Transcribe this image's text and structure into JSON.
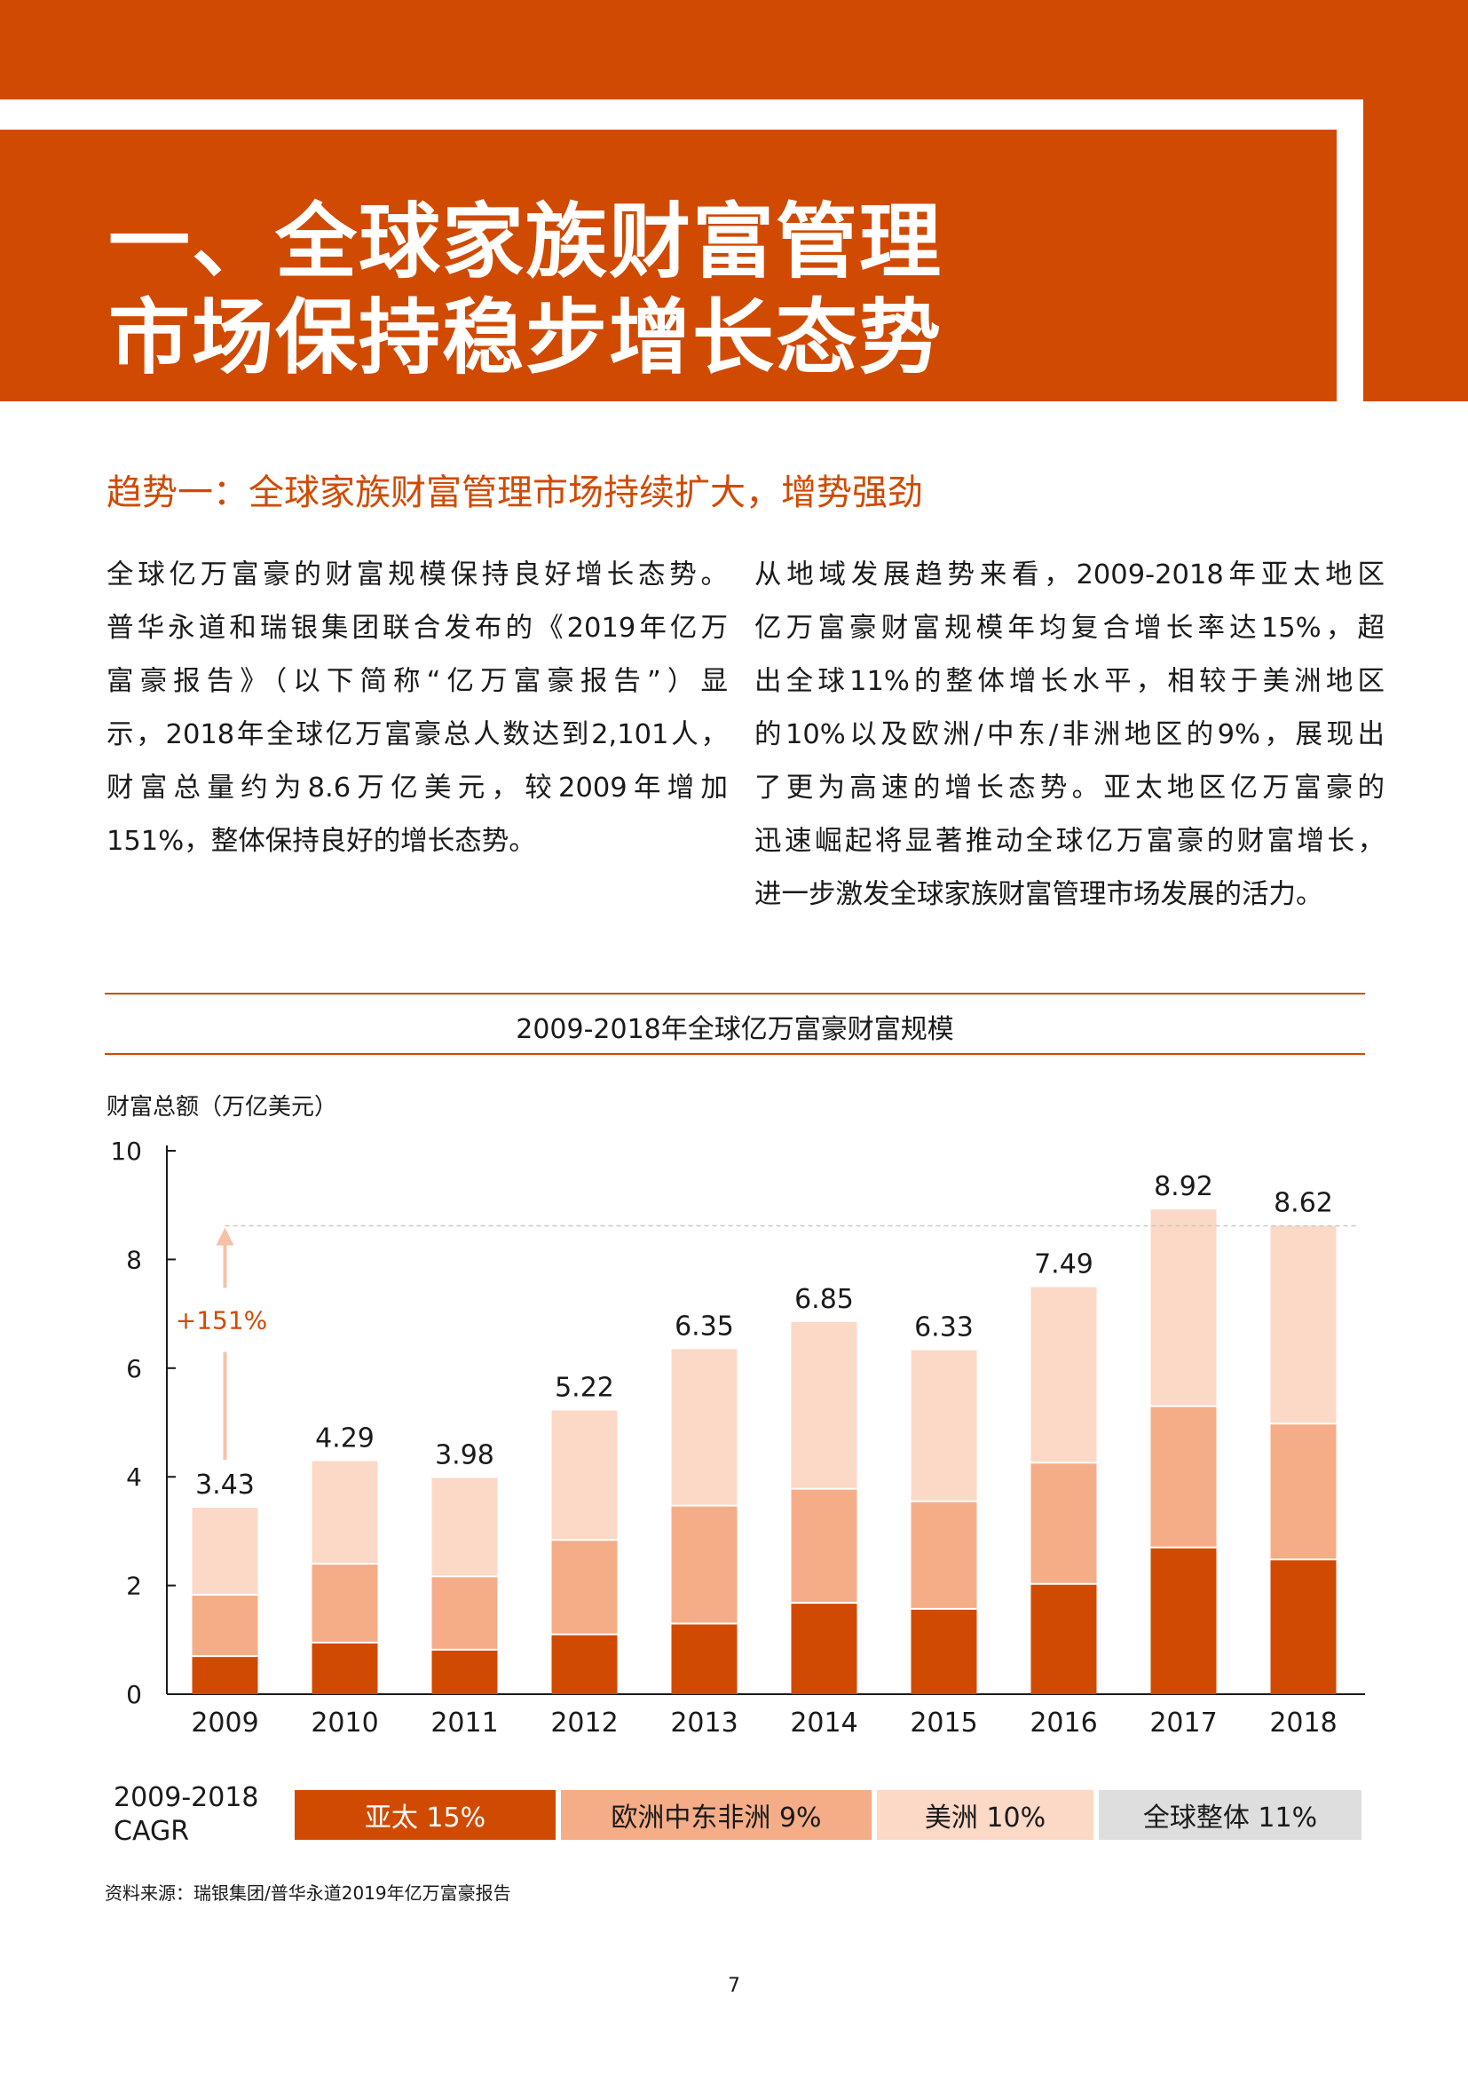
{
  "header": {
    "title_line1": "一、全球家族财富管理",
    "title_line2": "市场保持稳步增长态势"
  },
  "section": {
    "subheading": "趋势一：全球家族财富管理市场持续扩大，增势强劲"
  },
  "body": {
    "left_lines": [
      "全球亿万富豪的财富规模保持良好增长态势。",
      "普华永道和瑞银集团联合发布的《2019年亿万",
      "富豪报告》（以下简称“亿万富豪报告”）显",
      "示，2018年全球亿万富豪总人数达到2,101人，",
      "财富总量约为8.6万亿美元，较2009年增加",
      "151%，整体保持良好的增长态势。"
    ],
    "right_lines": [
      "从地域发展趋势来看，2009-2018年亚太地区",
      "亿万富豪财富规模年均复合增长率达15%，超",
      "出全球11%的整体增长水平，相较于美洲地区",
      "的10%以及欧洲/中东/非洲地区的9%，展现出",
      "了更为高速的增长态势。亚太地区亿万富豪的",
      "迅速崛起将显著推动全球亿万富豪的财富增长，",
      "进一步激发全球家族财富管理市场发展的活力。"
    ]
  },
  "chart_data": {
    "type": "bar",
    "title": "2009-2018年全球亿万富豪财富规模",
    "ylabel": "财富总额（万亿美元）",
    "xlabel": "",
    "ylim": [
      0,
      10
    ],
    "yticks": [
      "0",
      "2",
      "4",
      "6",
      "8",
      "10"
    ],
    "categories": [
      "2009",
      "2010",
      "2011",
      "2012",
      "2013",
      "2014",
      "2015",
      "2016",
      "2017",
      "2018"
    ],
    "totals": [
      3.43,
      4.29,
      3.98,
      5.22,
      6.35,
      6.85,
      6.33,
      7.49,
      8.92,
      8.62
    ],
    "total_labels": [
      "3.43",
      "4.29",
      "3.98",
      "5.22",
      "6.35",
      "6.85",
      "6.33",
      "7.49",
      "8.92",
      "8.62"
    ],
    "series": [
      {
        "name": "亚太",
        "color": "#d04a02",
        "values": [
          0.7,
          0.95,
          0.82,
          1.1,
          1.3,
          1.68,
          1.57,
          2.03,
          2.7,
          2.48
        ]
      },
      {
        "name": "欧洲中东非洲",
        "color": "#f5ad87",
        "values": [
          1.13,
          1.45,
          1.35,
          1.74,
          2.17,
          2.1,
          1.98,
          2.23,
          2.6,
          2.5
        ]
      },
      {
        "name": "美洲",
        "color": "#fcd8c6",
        "values": [
          1.6,
          1.89,
          1.81,
          2.38,
          2.88,
          3.07,
          2.78,
          3.23,
          3.62,
          3.64
        ]
      }
    ],
    "annotation": {
      "text": "+151%",
      "from_year": "2009",
      "reference_value": 8.62
    }
  },
  "legend": {
    "cagr_label_line1": "2009-2018",
    "cagr_label_line2": "CAGR",
    "items": [
      {
        "label": "亚太  15%",
        "bg": "#d04a02",
        "fg": "#ffffff"
      },
      {
        "label": "欧洲中东非洲  9%",
        "bg": "#f5ad87",
        "fg": "#1a1a1a"
      },
      {
        "label": "美洲  10%",
        "bg": "#fcd8c6",
        "fg": "#1a1a1a"
      },
      {
        "label": "全球整体  11%",
        "bg": "#dedede",
        "fg": "#1a1a1a"
      }
    ]
  },
  "footer": {
    "source": "资料来源：瑞银集团/普华永道2019年亿万富豪报告",
    "page_number": "7"
  }
}
